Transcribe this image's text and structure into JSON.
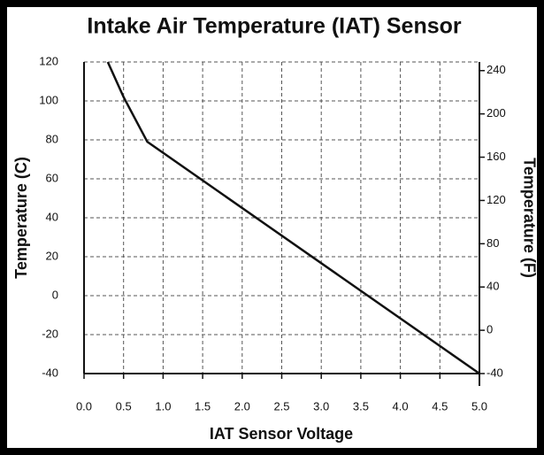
{
  "chart_data": {
    "type": "line",
    "title": "Intake Air Temperature (IAT) Sensor",
    "x_label": "IAT Sensor Voltage",
    "y_label": "Temperature (C)",
    "y2_label": "Temperature (F)",
    "x": [
      0.3,
      0.5,
      0.8,
      5.0
    ],
    "values": [
      120,
      102,
      79,
      -40
    ],
    "color": "#111111",
    "xlim": [
      0,
      5
    ],
    "xticks": [
      {
        "value": 0,
        "label": "0.0"
      },
      0.5,
      {
        "value": 1,
        "label": "1.0"
      },
      1.5,
      {
        "value": 2,
        "label": "2.0"
      },
      2.5,
      {
        "value": 3,
        "label": "3.0"
      },
      3.5,
      {
        "value": 4,
        "label": "4.0"
      },
      4.5,
      {
        "value": 5,
        "label": "5.0"
      }
    ],
    "ylim": [
      -40,
      120
    ],
    "yticks": [
      -40,
      -20,
      0,
      20,
      40,
      60,
      80,
      100,
      120
    ],
    "y2lim": [
      -40,
      248
    ],
    "y2ticks": [
      -40,
      0,
      40,
      80,
      120,
      160,
      200,
      240
    ],
    "grid": true
  }
}
